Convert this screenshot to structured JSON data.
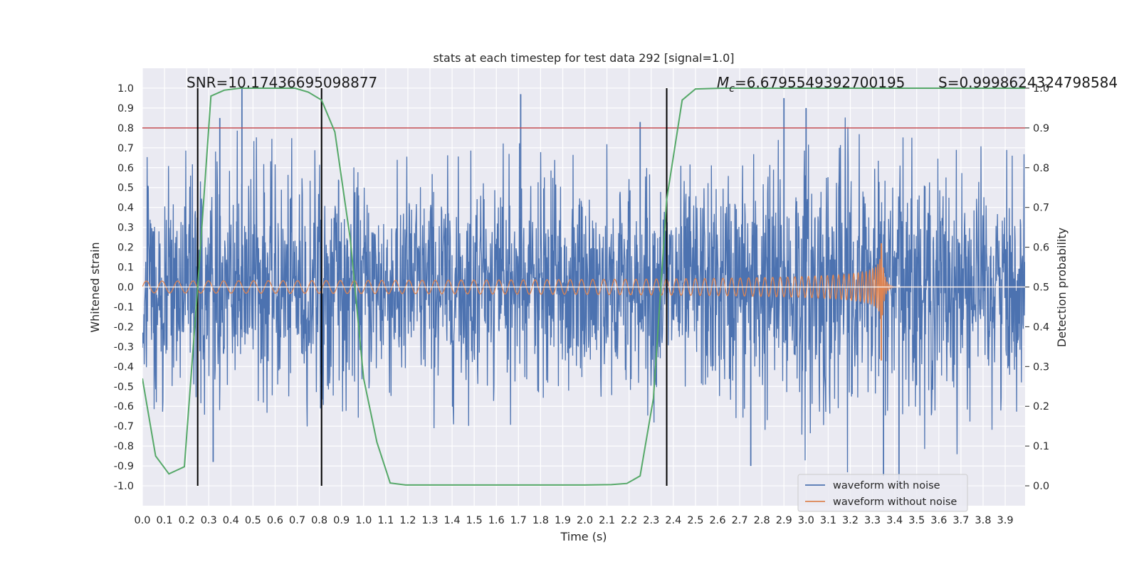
{
  "chart_data": {
    "type": "line",
    "title": "stats at each timestep for test data 292 [signal=1.0]",
    "xlabel": "Time (s)",
    "ylabel": "Whitened strain",
    "ylabel_right": "Detection probability",
    "xlim": [
      0.0,
      3.99
    ],
    "ylim": [
      -1.1,
      1.1
    ],
    "ylim_right": [
      -0.05,
      1.05
    ],
    "x_ticks": [
      "0.0",
      "0.1",
      "0.2",
      "0.3",
      "0.4",
      "0.5",
      "0.6",
      "0.7",
      "0.8",
      "0.9",
      "1.0",
      "1.1",
      "1.2",
      "1.3",
      "1.4",
      "1.5",
      "1.6",
      "1.7",
      "1.8",
      "1.9",
      "2.0",
      "2.1",
      "2.2",
      "2.3",
      "2.4",
      "2.5",
      "2.6",
      "2.7",
      "2.8",
      "2.9",
      "3.0",
      "3.1",
      "3.2",
      "3.3",
      "3.4",
      "3.5",
      "3.6",
      "3.7",
      "3.8",
      "3.9"
    ],
    "y_ticks": [
      "1.0",
      "0.9",
      "0.8",
      "0.7",
      "0.6",
      "0.5",
      "0.4",
      "0.3",
      "0.2",
      "0.1",
      "0.0",
      "-0.1",
      "-0.2",
      "-0.3",
      "-0.4",
      "-0.5",
      "-0.6",
      "-0.7",
      "-0.8",
      "-0.9",
      "-1.0"
    ],
    "y_right_ticks": [
      "1.0",
      "0.9",
      "0.8",
      "0.7",
      "0.6",
      "0.5",
      "0.4",
      "0.3",
      "0.2",
      "0.1",
      "0.0"
    ],
    "grid": true,
    "legend_position": "lower-right",
    "annotations": {
      "snr": "SNR=10.17436695098877",
      "mc_symbol": "M",
      "mc_subscript": "c",
      "mc_value": "=6.6795549392700195",
      "s": "S=0.9998624324798584"
    },
    "threshold": {
      "value": 0.9,
      "axis": "right",
      "color": "#c44e52"
    },
    "vertical_markers": [
      0.25,
      0.81,
      2.37
    ],
    "series": [
      {
        "name": "waveform with noise",
        "color": "#4c72b0",
        "axis": "left",
        "envelope_upper": [
          [
            0.0,
            0.7
          ],
          [
            0.5,
            0.82
          ],
          [
            1.0,
            0.72
          ],
          [
            1.5,
            0.75
          ],
          [
            2.0,
            0.72
          ],
          [
            2.5,
            0.75
          ],
          [
            3.0,
            0.92
          ],
          [
            3.5,
            0.76
          ],
          [
            3.99,
            0.68
          ]
        ],
        "envelope_lower": [
          [
            0.0,
            -0.68
          ],
          [
            0.5,
            -0.72
          ],
          [
            1.0,
            -0.7
          ],
          [
            1.5,
            -0.78
          ],
          [
            2.0,
            -0.72
          ],
          [
            2.5,
            -0.7
          ],
          [
            2.8,
            -0.92
          ],
          [
            3.3,
            -0.95
          ],
          [
            3.5,
            -0.9
          ],
          [
            3.99,
            -0.8
          ]
        ],
        "peaks": [
          [
            0.45,
            1.0
          ],
          [
            0.35,
            0.85
          ],
          [
            1.71,
            0.97
          ],
          [
            2.9,
            0.95
          ],
          [
            3.0,
            0.9
          ],
          [
            2.25,
            0.83
          ],
          [
            3.35,
            -0.95
          ],
          [
            3.42,
            -1.0
          ],
          [
            2.75,
            -0.9
          ],
          [
            0.32,
            -0.88
          ]
        ]
      },
      {
        "name": "waveform without noise",
        "color": "#dd8452",
        "axis": "left",
        "chirp_start_amplitude": 0.03,
        "chirp_peak_amplitude": 0.23,
        "merger_time": 3.34
      },
      {
        "name": "detection probability",
        "color": "#55a868",
        "axis": "right",
        "x": [
          0.0,
          0.06,
          0.12,
          0.19,
          0.25,
          0.31,
          0.37,
          0.44,
          0.5,
          0.56,
          0.62,
          0.69,
          0.75,
          0.81,
          0.87,
          0.94,
          1.0,
          1.06,
          1.12,
          1.19,
          1.25,
          1.5,
          1.75,
          2.0,
          2.12,
          2.19,
          2.25,
          2.31,
          2.37,
          2.44,
          2.5,
          2.62,
          2.75,
          3.0,
          3.25,
          3.5,
          3.75,
          3.99
        ],
        "values": [
          0.27,
          0.075,
          0.03,
          0.048,
          0.5,
          0.98,
          0.995,
          1.0,
          1.0,
          1.0,
          1.0,
          1.0,
          0.99,
          0.97,
          0.89,
          0.62,
          0.27,
          0.11,
          0.007,
          0.002,
          0.002,
          0.002,
          0.002,
          0.002,
          0.003,
          0.006,
          0.025,
          0.22,
          0.72,
          0.97,
          0.998,
          1.0,
          1.0,
          1.0,
          1.0,
          1.0,
          1.0,
          1.0
        ]
      }
    ]
  }
}
